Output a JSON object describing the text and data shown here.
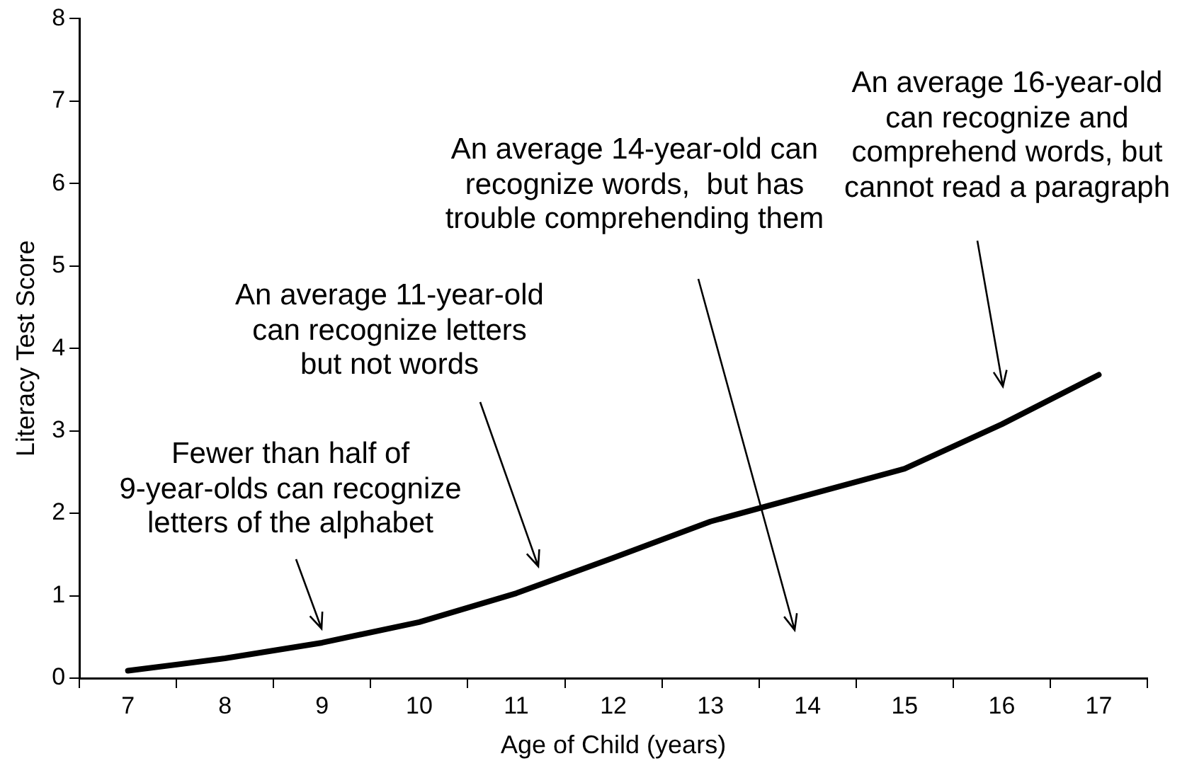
{
  "chart_data": {
    "type": "line",
    "xlabel": "Age of Child (years)",
    "ylabel": "Literacy Test Score",
    "categories": [
      "7",
      "8",
      "9",
      "10",
      "11",
      "12",
      "13",
      "14",
      "15",
      "16",
      "17"
    ],
    "series": [
      {
        "color": "#000000",
        "values": [
          0.09,
          0.24,
          0.43,
          0.68,
          1.03,
          1.46,
          1.9,
          2.22,
          2.54,
          3.08,
          3.68
        ]
      }
    ],
    "ylim": [
      0,
      8
    ],
    "yticks": [
      0,
      1,
      2,
      3,
      4,
      5,
      6,
      7,
      8
    ],
    "grid": false,
    "legend": false,
    "marker": "none",
    "line_style": "solid",
    "annotations": [
      "Fewer than half of\n9-year-olds can recognize\nletters of the alphabet",
      "An average 11-year-old\ncan recognize letters\nbut not words",
      "An average 14-year-old can\nrecognize words,  but has\ntrouble comprehending them",
      "An average 16-year-old\ncan recognize and\ncomprehend words, but\ncannot read a paragraph"
    ]
  }
}
